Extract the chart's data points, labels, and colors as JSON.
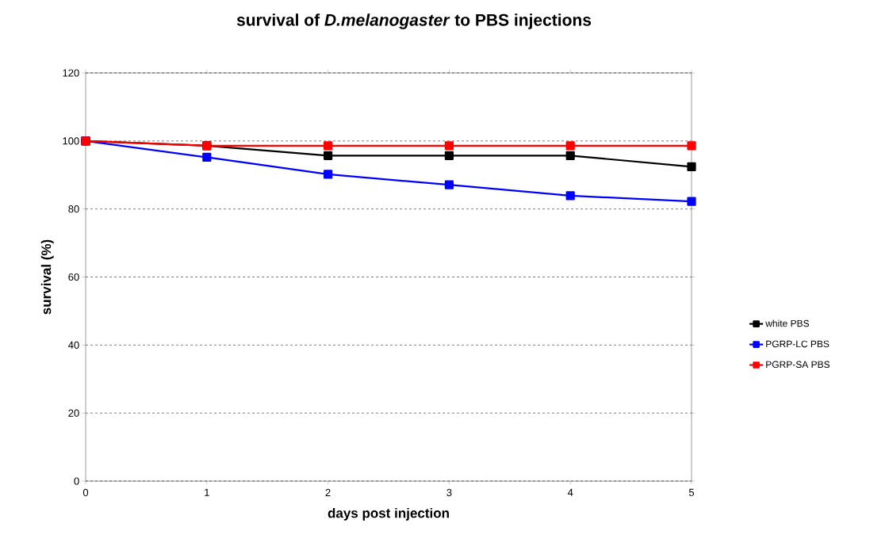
{
  "chart_data": {
    "type": "line",
    "title": "survival of *D.melanogaster* to PBS injections",
    "xlabel": "days post injection",
    "ylabel": "survival (%)",
    "x": [
      0,
      1,
      2,
      3,
      4,
      5
    ],
    "series": [
      {
        "name": "white PBS",
        "color": "#000000",
        "values": [
          100,
          98.6,
          95.7,
          95.7,
          95.7,
          92.4
        ]
      },
      {
        "name": "PGRP-LC PBS",
        "color": "#0000ff",
        "values": [
          100,
          95.2,
          90.2,
          87.1,
          83.9,
          82.2
        ]
      },
      {
        "name": "PGRP-SA PBS",
        "color": "#ff0000",
        "values": [
          100,
          98.6,
          98.6,
          98.6,
          98.6,
          98.6
        ]
      }
    ],
    "xlim": [
      0,
      5
    ],
    "xticks": [
      0,
      1,
      2,
      3,
      4,
      5
    ],
    "ylim": [
      0,
      120
    ],
    "yticks": [
      0,
      20,
      40,
      60,
      80,
      100,
      120
    ],
    "grid": "y",
    "legend": "right",
    "marker": "square",
    "line_style": "solid"
  }
}
